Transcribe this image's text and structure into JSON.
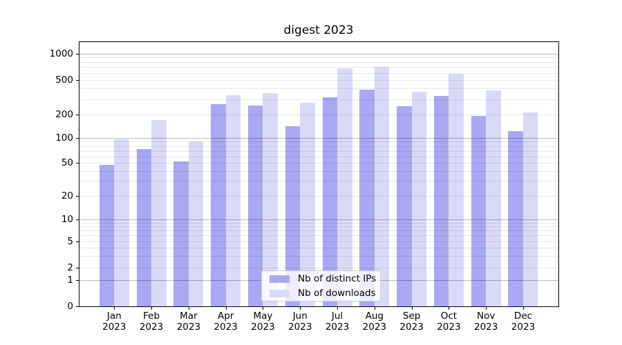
{
  "title": "digest 2023",
  "legend": {
    "items": [
      {
        "label": "Nb of distinct IPs",
        "color": "#a8a8f3"
      },
      {
        "label": "Nb of downloads",
        "color": "#d9d9f8"
      }
    ]
  },
  "chart_data": {
    "type": "bar",
    "title": "digest 2023",
    "categories": [
      "Jan 2023",
      "Feb 2023",
      "Mar 2023",
      "Apr 2023",
      "May 2023",
      "Jun 2023",
      "Jul 2023",
      "Aug 2023",
      "Sep 2023",
      "Oct 2023",
      "Nov 2023",
      "Dec 2023"
    ],
    "x_months": [
      "Jan",
      "Feb",
      "Mar",
      "Apr",
      "May",
      "Jun",
      "Jul",
      "Aug",
      "Sep",
      "Oct",
      "Nov",
      "Dec"
    ],
    "x_year": "2023",
    "series": [
      {
        "name": "Nb of distinct IPs",
        "color": "#a8a8f3",
        "values": [
          48,
          74,
          52,
          265,
          255,
          141,
          318,
          390,
          250,
          330,
          193,
          124
        ]
      },
      {
        "name": "Nb of downloads",
        "color": "#d9d9f8",
        "values": [
          97,
          170,
          91,
          335,
          358,
          272,
          690,
          710,
          368,
          594,
          385,
          213
        ]
      }
    ],
    "yscale": "symlog",
    "yticks": [
      0,
      1,
      2,
      5,
      10,
      20,
      50,
      100,
      200,
      500,
      1000
    ],
    "ylim": [
      0,
      1450
    ],
    "grid": "horizontal, minor and major",
    "legend_position": "lower center"
  }
}
